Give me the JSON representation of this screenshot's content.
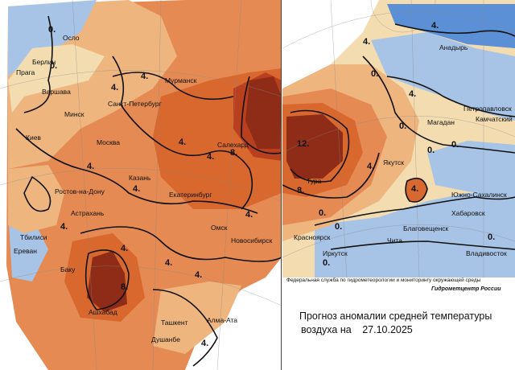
{
  "title_line1": "Прогноз аномалии средней температуры",
  "title_line2": "воздуха на",
  "forecast_date": "27.10.2025",
  "agency": "Федеральная служба по гидрометеорологии и мониторингу окружающей среды",
  "center": "Гидрометцентр России",
  "colors": {
    "cold_strong": "#5b8fd6",
    "cold": "#a7c3e6",
    "neutral": "#f2dcb0",
    "warm1": "#eeb57f",
    "warm2": "#e58a52",
    "warm3": "#d9682f",
    "warm4": "#b8401f",
    "hot": "#8e2c17",
    "outside": "#ffffff"
  },
  "left_map": {
    "cities": [
      "Осло",
      "Берлин",
      "Прага",
      "Варшава",
      "Санкт-Петербург",
      "Мурманск",
      "Минск",
      "Москва",
      "Киев",
      "Салехард",
      "Казань",
      "Ростов-на-Дону",
      "Екатеринбург",
      "Астрахань",
      "Омск",
      "Новосибирск",
      "Тбилиси",
      "Ереван",
      "Баку",
      "Ашхабад",
      "Ташкент",
      "Алма-Ата",
      "Душанбе"
    ],
    "isolines": [
      "0.",
      "0.",
      "4.",
      "4.",
      "4.",
      "4.",
      "4.",
      "4.",
      "4.",
      "8.",
      "4.",
      "4.",
      "4.",
      "4.",
      "8.",
      "4.",
      "4."
    ]
  },
  "right_map": {
    "cities": [
      "Анадырь",
      "Петропавловск",
      "Магадан",
      "Камчатский",
      "Якутск",
      "Тура",
      "Южно-Сахалинск",
      "Хабаровск",
      "Красноярск",
      "Благовещенск",
      "Иркутск",
      "Чита",
      "Владивосток"
    ],
    "isolines": [
      "4.",
      "4.",
      "0.",
      "0.",
      "0.",
      "0.",
      "12.",
      "8.",
      "4.",
      "4.",
      "0.",
      "0.",
      "0.",
      "0.",
      "4."
    ]
  }
}
